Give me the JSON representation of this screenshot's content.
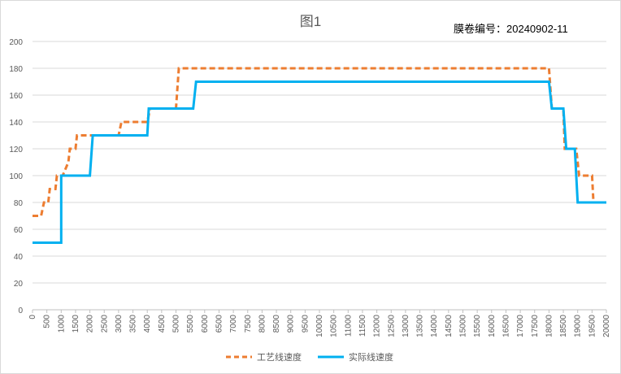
{
  "chart_data": {
    "type": "line",
    "title": "图1",
    "annotation_label": "膜卷编号：",
    "annotation_value": "20240902-11",
    "xlabel": "",
    "ylabel": "",
    "ylim": [
      0,
      200
    ],
    "yticks": [
      0,
      20,
      40,
      60,
      80,
      100,
      120,
      140,
      160,
      180,
      200
    ],
    "xlim": [
      0,
      20000
    ],
    "xticks": [
      "0",
      "500",
      "1000",
      "1500",
      "2000",
      "2500",
      "3000",
      "3500",
      "4000",
      "4500",
      "5000",
      "5500",
      "6000",
      "6500",
      "7000",
      "7500",
      "8000",
      "8500",
      "9000",
      "9500",
      "10000",
      "10500",
      "11000",
      "11500",
      "12000",
      "12500",
      "13000",
      "13500",
      "14000",
      "14500",
      "15000",
      "15500",
      "16000",
      "16500",
      "17000",
      "17500",
      "18000",
      "18500",
      "19000",
      "19500",
      "20000"
    ],
    "grid": true,
    "legend_position": "bottom",
    "series": [
      {
        "name": "工艺线速度",
        "color": "#ED7D31",
        "style": "dashed",
        "points": [
          [
            0,
            70
          ],
          [
            300,
            70
          ],
          [
            400,
            80
          ],
          [
            550,
            80
          ],
          [
            600,
            90
          ],
          [
            800,
            90
          ],
          [
            850,
            100
          ],
          [
            1050,
            100
          ],
          [
            1250,
            110
          ],
          [
            1300,
            120
          ],
          [
            1500,
            120
          ],
          [
            1550,
            130
          ],
          [
            2000,
            130
          ],
          [
            3000,
            130
          ],
          [
            3100,
            140
          ],
          [
            4000,
            140
          ],
          [
            4100,
            150
          ],
          [
            5000,
            150
          ],
          [
            5100,
            180
          ],
          [
            17900,
            180
          ],
          [
            18000,
            180
          ],
          [
            18100,
            150
          ],
          [
            18500,
            150
          ],
          [
            18550,
            120
          ],
          [
            18800,
            120
          ],
          [
            18950,
            120
          ],
          [
            19050,
            100
          ],
          [
            19400,
            100
          ],
          [
            19500,
            100
          ],
          [
            19550,
            80
          ]
        ]
      },
      {
        "name": "实际线速度",
        "color": "#00B0F0",
        "style": "solid",
        "points": [
          [
            0,
            50
          ],
          [
            1000,
            50
          ],
          [
            1000,
            100
          ],
          [
            2000,
            100
          ],
          [
            2100,
            130
          ],
          [
            4000,
            130
          ],
          [
            4050,
            150
          ],
          [
            5600,
            150
          ],
          [
            5700,
            170
          ],
          [
            18000,
            170
          ],
          [
            18100,
            150
          ],
          [
            18500,
            150
          ],
          [
            18600,
            120
          ],
          [
            18900,
            120
          ],
          [
            19000,
            80
          ],
          [
            20000,
            80
          ]
        ]
      }
    ]
  }
}
